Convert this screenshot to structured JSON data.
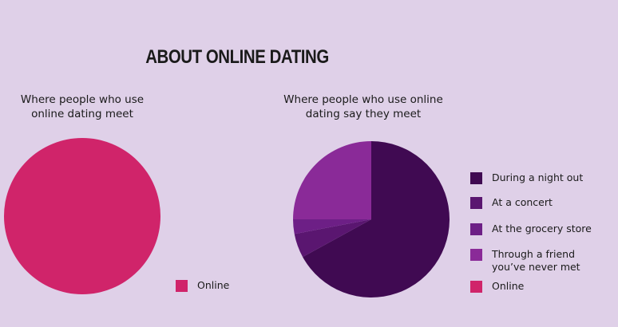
{
  "title": "ABOUT ONLINE DATING",
  "chart_data": [
    {
      "type": "pie",
      "title": "Where people who use\nonline dating meet",
      "categories": [
        "Online"
      ],
      "values": [
        100
      ],
      "colors": [
        "#d0246a"
      ]
    },
    {
      "type": "pie",
      "title": "Where people who use online\ndating say they meet",
      "categories": [
        "During a night out",
        "At a concert",
        "At the grocery store",
        "Through a friend\nyou’ve never met",
        "Online"
      ],
      "values": [
        67,
        5,
        3,
        25,
        0
      ],
      "colors": [
        "#400a52",
        "#5a1670",
        "#6d1f86",
        "#8a2a98",
        "#d0246a"
      ]
    }
  ]
}
